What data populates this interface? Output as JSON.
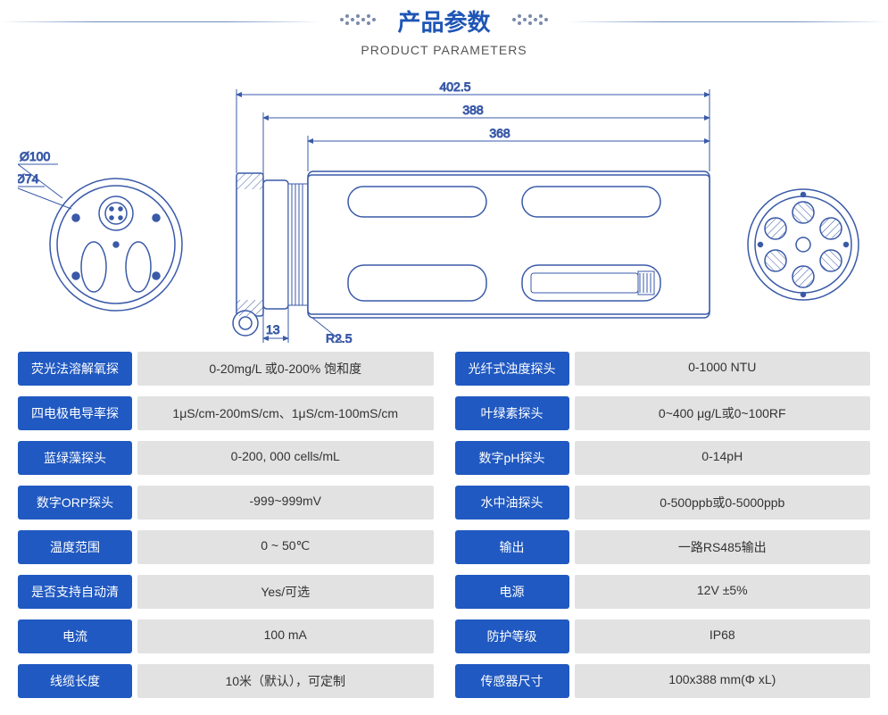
{
  "header": {
    "title_cn": "产品参数",
    "title_en": "PRODUCT PARAMETERS"
  },
  "colors": {
    "brand_blue": "#1f55b5",
    "label_bg": "#2059c1",
    "value_bg": "#e2e2e2",
    "line_blue": "#3a5aa8",
    "dot": "#7a8aa8"
  },
  "diagram": {
    "dims": {
      "overall": "402.5",
      "body": "388",
      "slot": "368",
      "d_outer": "Ø100",
      "d_inner": "Ø74",
      "small": "13",
      "radius": "R2.5"
    }
  },
  "params_left": [
    {
      "label": "荧光法溶解氧探",
      "value": "0-20mg/L 或0-200% 饱和度"
    },
    {
      "label": "四电极电导率探",
      "value": "1μS/cm-200mS/cm、1μS/cm-100mS/cm"
    },
    {
      "label": "蓝绿藻探头",
      "value": "0-200, 000 cells/mL"
    },
    {
      "label": "数字ORP探头",
      "value": "-999~999mV"
    },
    {
      "label": "温度范围",
      "value": "0 ~ 50℃"
    },
    {
      "label": "是否支持自动清",
      "value": "Yes/可选"
    },
    {
      "label": "电流",
      "value": "100 mA"
    },
    {
      "label": "线缆长度",
      "value": "10米（默认），可定制"
    }
  ],
  "params_right": [
    {
      "label": "光纤式浊度探头",
      "value": "0-1000 NTU"
    },
    {
      "label": "叶绿素探头",
      "value": "0~400 μg/L或0~100RF"
    },
    {
      "label": "数字pH探头",
      "value": "0-14pH"
    },
    {
      "label": "水中油探头",
      "value": "0-500ppb或0-5000ppb"
    },
    {
      "label": "输出",
      "value": "一路RS485输出"
    },
    {
      "label": "电源",
      "value": "12V ±5%"
    },
    {
      "label": "防护等级",
      "value": "IP68"
    },
    {
      "label": "传感器尺寸",
      "value": "100x388 mm(Φ xL)"
    }
  ]
}
